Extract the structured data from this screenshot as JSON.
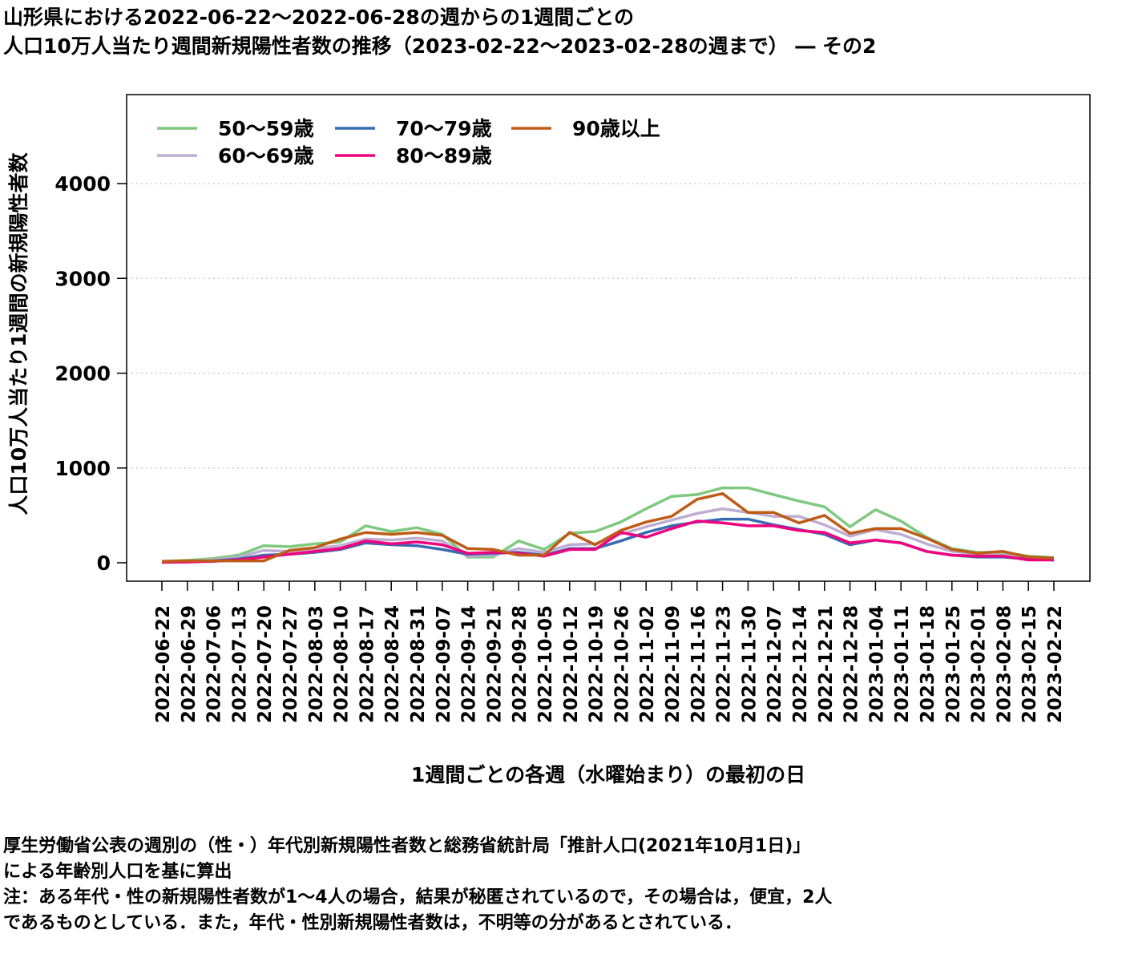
{
  "title": {
    "line1": "山形県における2022-06-22～2022-06-28の週からの1週間ごとの",
    "line2": "人口10万人当たり週間新規陽性者数の推移（2023-02-22～2023-02-28の週まで） ― その2"
  },
  "notes": [
    "厚生労働省公表の週別の（性・）年代別新規陽性者数と総務省統計局「推計人口(2021年10月1日)」",
    "による年齢別人口を基に算出",
    "注：ある年代・性の新規陽性者数が1～4人の場合，結果が秘匿されているので，その場合は，便宜，2人",
    "であるものとしている．また，年代・性別新規陽性者数は，不明等の分があるとされている．"
  ],
  "chart_data": {
    "type": "line",
    "xlabel": "1週間ごとの各週（水曜始まり）の最初の日",
    "ylabel": "人口10万人当たり1週間の新規陽性者数",
    "ylim": [
      -150,
      4900
    ],
    "yticks": [
      0,
      1000,
      2000,
      3000,
      4000
    ],
    "grid": "horizontal dotted",
    "legend_position": "top-left",
    "x": [
      "2022-06-22",
      "2022-06-29",
      "2022-07-06",
      "2022-07-13",
      "2022-07-20",
      "2022-07-27",
      "2022-08-03",
      "2022-08-10",
      "2022-08-17",
      "2022-08-24",
      "2022-08-31",
      "2022-09-07",
      "2022-09-14",
      "2022-09-21",
      "2022-09-28",
      "2022-10-05",
      "2022-10-12",
      "2022-10-19",
      "2022-10-26",
      "2022-11-02",
      "2022-11-09",
      "2022-11-16",
      "2022-11-23",
      "2022-11-30",
      "2022-12-07",
      "2022-12-14",
      "2022-12-21",
      "2022-12-28",
      "2023-01-04",
      "2023-01-11",
      "2023-01-18",
      "2023-01-25",
      "2023-02-01",
      "2023-02-08",
      "2023-02-15",
      "2023-02-22"
    ],
    "series": [
      {
        "name": "50～59歳",
        "color": "#7fc97f",
        "values": [
          15,
          25,
          45,
          80,
          180,
          170,
          200,
          220,
          390,
          330,
          370,
          300,
          60,
          60,
          230,
          140,
          310,
          330,
          430,
          570,
          700,
          720,
          790,
          790,
          720,
          650,
          590,
          380,
          560,
          440,
          270,
          150,
          110,
          110,
          70,
          55
        ]
      },
      {
        "name": "60～69歳",
        "color": "#beaed4",
        "values": [
          10,
          15,
          30,
          60,
          130,
          120,
          150,
          180,
          250,
          240,
          260,
          230,
          70,
          80,
          150,
          110,
          190,
          200,
          300,
          380,
          450,
          520,
          570,
          530,
          490,
          490,
          400,
          280,
          350,
          300,
          200,
          120,
          90,
          80,
          50,
          40
        ]
      },
      {
        "name": "70～79歳",
        "color": "#386cb0",
        "values": [
          5,
          10,
          20,
          40,
          80,
          90,
          110,
          140,
          210,
          190,
          180,
          140,
          90,
          100,
          110,
          80,
          150,
          150,
          230,
          320,
          390,
          430,
          460,
          460,
          400,
          350,
          300,
          190,
          240,
          210,
          120,
          80,
          60,
          60,
          40,
          30
        ]
      },
      {
        "name": "80～89歳",
        "color": "#f0027f",
        "values": [
          5,
          8,
          15,
          30,
          60,
          90,
          120,
          150,
          230,
          200,
          220,
          190,
          100,
          110,
          100,
          70,
          140,
          140,
          320,
          270,
          360,
          440,
          420,
          390,
          390,
          340,
          320,
          210,
          240,
          210,
          120,
          80,
          70,
          70,
          30,
          30
        ]
      },
      {
        "name": "90歳以上",
        "color": "#bf5b17",
        "values": [
          15,
          20,
          20,
          20,
          20,
          130,
          160,
          250,
          320,
          300,
          320,
          290,
          150,
          140,
          80,
          80,
          320,
          190,
          340,
          430,
          490,
          670,
          730,
          530,
          530,
          420,
          500,
          310,
          360,
          360,
          260,
          140,
          100,
          120,
          60,
          50
        ]
      }
    ]
  }
}
